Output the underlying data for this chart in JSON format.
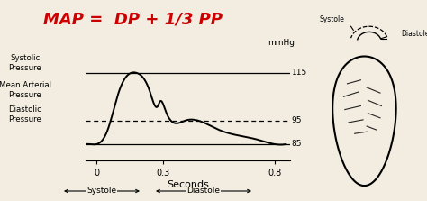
{
  "title": "MAP =  DP + 1/3 PP",
  "title_color": "#cc0000",
  "title_fontsize": 13,
  "bg_color": "#f2ede0",
  "systolic_pressure": 115,
  "map_pressure": 95,
  "diastolic_pressure": 85,
  "x_ticks": [
    0,
    0.3,
    0.8
  ],
  "xlabel": "Seconds",
  "ylabel_systolic": "Systolic\nPressure",
  "ylabel_map": "Mean Arterial\nPressure",
  "ylabel_diastolic": "Diastolic\nPressure",
  "mmhg_label": "mmHg"
}
